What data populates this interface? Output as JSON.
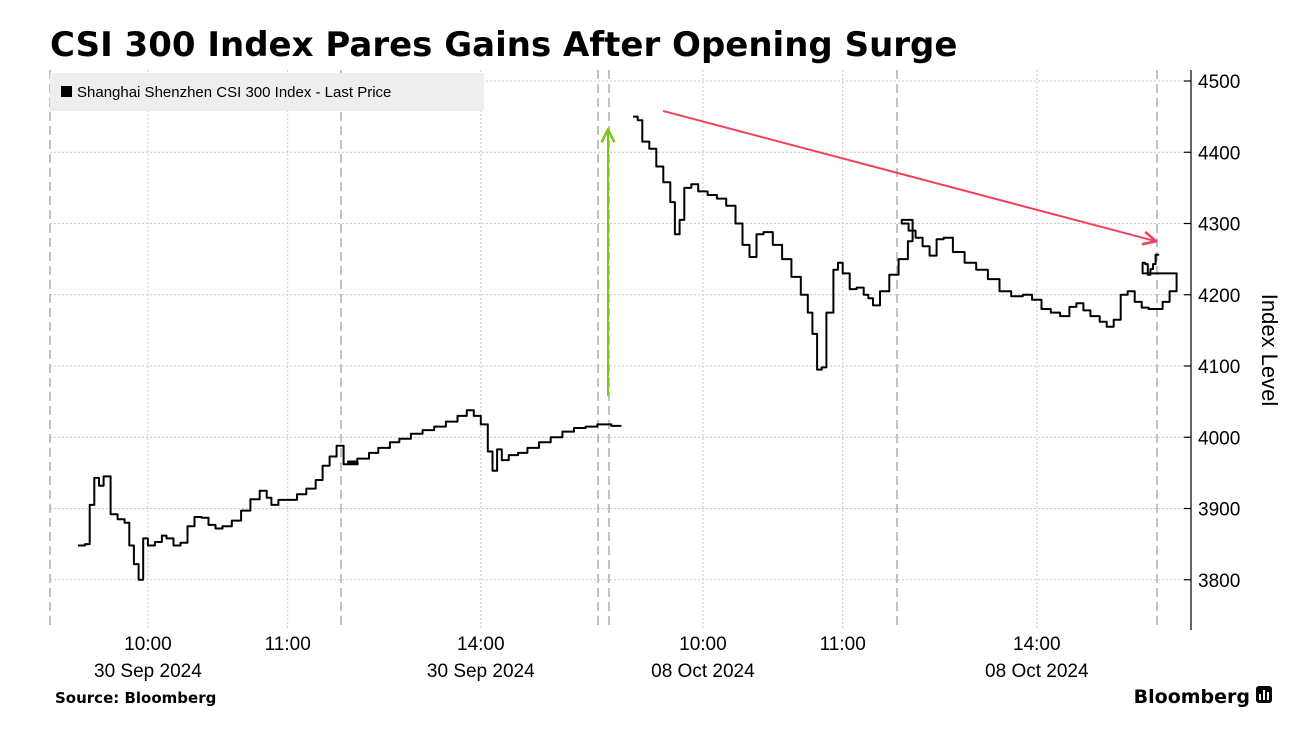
{
  "header": {
    "title": "CSI 300 Index Pares Gains After Opening Surge"
  },
  "footer": {
    "source": "Source: Bloomberg",
    "brand": "Bloomberg"
  },
  "colors": {
    "line": "#000000",
    "up_arrow": "#7dc51d",
    "down_arrow": "#f0435a",
    "grid": "#c8c8c8",
    "legend_bg": "#eeeeee"
  },
  "chart_data": {
    "type": "line",
    "title": "CSI 300 Index Pares Gains After Opening Surge",
    "ylabel": "Index Level",
    "ylim": [
      3740,
      4520
    ],
    "y_ticks": [
      3800,
      3900,
      4000,
      4100,
      4200,
      4300,
      4400,
      4500
    ],
    "legend": {
      "label": "Shanghai Shenzhen CSI 300 Index - Last Price",
      "placement": "top-left"
    },
    "grid": true,
    "x_tick_labels": [
      {
        "time": "10:00",
        "date": "30 Sep 2024",
        "show_date": true
      },
      {
        "time": "11:00",
        "date": "30 Sep 2024",
        "show_date": false
      },
      {
        "time": "14:00",
        "date": "30 Sep 2024",
        "show_date": true
      },
      {
        "time": "10:00",
        "date": "08 Oct 2024",
        "show_date": true
      },
      {
        "time": "11:00",
        "date": "08 Oct 2024",
        "show_date": false
      },
      {
        "time": "14:00",
        "date": "08 Oct 2024",
        "show_date": true
      }
    ],
    "series": [
      {
        "name": "Shanghai Shenzhen CSI 300 Index - Last Price",
        "sessions": [
          {
            "date": "30 Sep 2024",
            "points": [
              [
                "09:30",
                3848
              ],
              [
                "09:33",
                3850
              ],
              [
                "09:35",
                3905
              ],
              [
                "09:37",
                3943
              ],
              [
                "09:39",
                3932
              ],
              [
                "09:41",
                3945
              ],
              [
                "09:44",
                3892
              ],
              [
                "09:47",
                3885
              ],
              [
                "09:50",
                3880
              ],
              [
                "09:52",
                3848
              ],
              [
                "09:54",
                3822
              ],
              [
                "09:56",
                3800
              ],
              [
                "09:58",
                3858
              ],
              [
                "10:00",
                3848
              ],
              [
                "10:03",
                3853
              ],
              [
                "10:06",
                3862
              ],
              [
                "10:08",
                3858
              ],
              [
                "10:11",
                3848
              ],
              [
                "10:14",
                3852
              ],
              [
                "10:17",
                3875
              ],
              [
                "10:20",
                3888
              ],
              [
                "10:23",
                3887
              ],
              [
                "10:26",
                3877
              ],
              [
                "10:29",
                3872
              ],
              [
                "10:32",
                3875
              ],
              [
                "10:36",
                3883
              ],
              [
                "10:40",
                3897
              ],
              [
                "10:44",
                3913
              ],
              [
                "10:48",
                3925
              ],
              [
                "10:51",
                3915
              ],
              [
                "10:53",
                3905
              ],
              [
                "10:56",
                3912
              ],
              [
                "11:00",
                3912
              ],
              [
                "11:04",
                3920
              ],
              [
                "11:08",
                3928
              ],
              [
                "11:12",
                3940
              ],
              [
                "11:15",
                3960
              ],
              [
                "11:18",
                3973
              ],
              [
                "11:21",
                3988
              ],
              [
                "11:24",
                3962
              ],
              [
                "11:27",
                3962
              ],
              [
                "11:30",
                3965
              ],
              [
                "13:03",
                3966
              ],
              [
                "13:07",
                3970
              ],
              [
                "13:12",
                3978
              ],
              [
                "13:16",
                3985
              ],
              [
                "13:21",
                3993
              ],
              [
                "13:25",
                3998
              ],
              [
                "13:30",
                4005
              ],
              [
                "13:35",
                4010
              ],
              [
                "13:40",
                4015
              ],
              [
                "13:45",
                4022
              ],
              [
                "13:50",
                4030
              ],
              [
                "13:54",
                4038
              ],
              [
                "13:57",
                4030
              ],
              [
                "14:00",
                4018
              ],
              [
                "14:03",
                3980
              ],
              [
                "14:05",
                3953
              ],
              [
                "14:07",
                3983
              ],
              [
                "14:09",
                3968
              ],
              [
                "14:12",
                3975
              ],
              [
                "14:16",
                3978
              ],
              [
                "14:20",
                3985
              ],
              [
                "14:25",
                3993
              ],
              [
                "14:30",
                4000
              ],
              [
                "14:35",
                4008
              ],
              [
                "14:40",
                4013
              ],
              [
                "14:45",
                4015
              ],
              [
                "14:50",
                4018
              ],
              [
                "14:56",
                4016
              ],
              [
                "15:00",
                4017
              ]
            ]
          },
          {
            "date": "08 Oct 2024",
            "points": [
              [
                "09:30",
                4450
              ],
              [
                "09:32",
                4445
              ],
              [
                "09:34",
                4415
              ],
              [
                "09:37",
                4405
              ],
              [
                "09:40",
                4380
              ],
              [
                "09:43",
                4358
              ],
              [
                "09:46",
                4330
              ],
              [
                "09:48",
                4285
              ],
              [
                "09:50",
                4305
              ],
              [
                "09:52",
                4350
              ],
              [
                "09:55",
                4355
              ],
              [
                "09:58",
                4345
              ],
              [
                "10:02",
                4340
              ],
              [
                "10:06",
                4335
              ],
              [
                "10:10",
                4325
              ],
              [
                "10:14",
                4300
              ],
              [
                "10:17",
                4270
              ],
              [
                "10:20",
                4253
              ],
              [
                "10:23",
                4285
              ],
              [
                "10:26",
                4288
              ],
              [
                "10:30",
                4270
              ],
              [
                "10:34",
                4250
              ],
              [
                "10:38",
                4225
              ],
              [
                "10:42",
                4200
              ],
              [
                "10:45",
                4175
              ],
              [
                "10:47",
                4145
              ],
              [
                "10:49",
                4095
              ],
              [
                "10:51",
                4098
              ],
              [
                "10:53",
                4175
              ],
              [
                "10:56",
                4235
              ],
              [
                "10:58",
                4245
              ],
              [
                "11:00",
                4230
              ],
              [
                "11:03",
                4208
              ],
              [
                "11:06",
                4210
              ],
              [
                "11:09",
                4200
              ],
              [
                "11:11",
                4195
              ],
              [
                "11:13",
                4185
              ],
              [
                "11:16",
                4205
              ],
              [
                "11:20",
                4228
              ],
              [
                "11:24",
                4250
              ],
              [
                "11:28",
                4275
              ],
              [
                "11:30",
                4305
              ],
              [
                "13:02",
                4300
              ],
              [
                "13:05",
                4290
              ],
              [
                "13:08",
                4280
              ],
              [
                "13:11",
                4268
              ],
              [
                "13:14",
                4255
              ],
              [
                "13:17",
                4278
              ],
              [
                "13:20",
                4280
              ],
              [
                "13:24",
                4260
              ],
              [
                "13:29",
                4245
              ],
              [
                "13:34",
                4235
              ],
              [
                "13:39",
                4222
              ],
              [
                "13:44",
                4205
              ],
              [
                "13:49",
                4198
              ],
              [
                "13:54",
                4200
              ],
              [
                "13:58",
                4193
              ],
              [
                "14:02",
                4180
              ],
              [
                "14:06",
                4175
              ],
              [
                "14:10",
                4170
              ],
              [
                "14:14",
                4183
              ],
              [
                "14:17",
                4188
              ],
              [
                "14:20",
                4178
              ],
              [
                "14:23",
                4170
              ],
              [
                "14:27",
                4162
              ],
              [
                "14:30",
                4155
              ],
              [
                "14:33",
                4165
              ],
              [
                "14:36",
                4200
              ],
              [
                "14:39",
                4205
              ],
              [
                "14:42",
                4190
              ],
              [
                "14:45",
                4182
              ],
              [
                "14:48",
                4180
              ],
              [
                "14:51",
                4180
              ],
              [
                "14:54",
                4190
              ],
              [
                "14:57",
                4205
              ],
              [
                "15:00",
                4230
              ]
            ],
            "tail_points": [
              [
                "15:03",
                4245
              ],
              [
                "15:06",
                4243
              ],
              [
                "15:09",
                4228
              ],
              [
                "15:12",
                4236
              ],
              [
                "15:15",
                4243
              ],
              [
                "15:18",
                4256
              ],
              [
                "15:21",
                4255
              ]
            ]
          }
        ]
      }
    ],
    "annotations": [
      {
        "type": "arrow",
        "color": "green",
        "from": [
          "session_break",
          4058
        ],
        "to": [
          "session_break",
          4432
        ],
        "meaning": "opening surge"
      },
      {
        "type": "arrow",
        "color": "red",
        "from": [
          "08 Oct 09:33",
          4458
        ],
        "to": [
          "08 Oct close",
          4275
        ],
        "meaning": "pares gains"
      }
    ]
  }
}
